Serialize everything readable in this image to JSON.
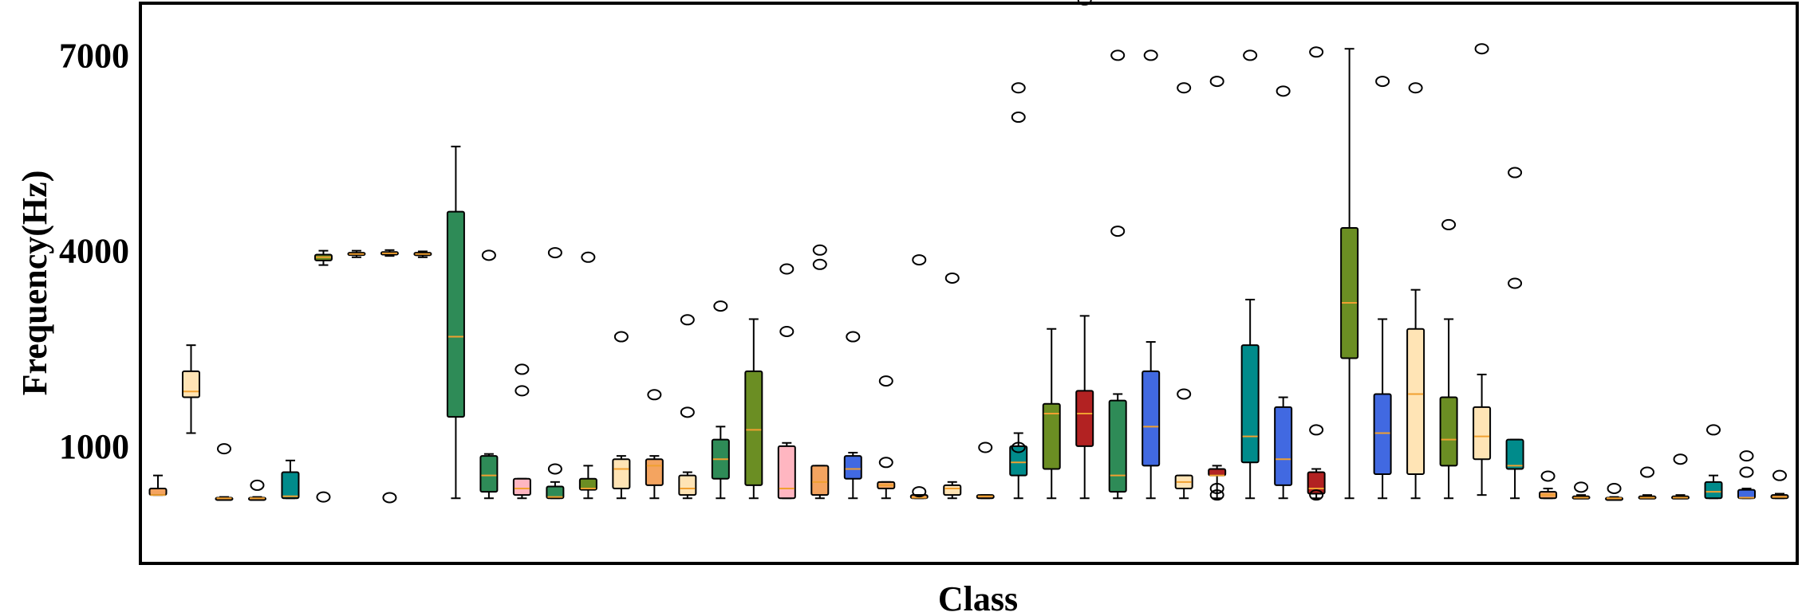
{
  "chart_data": {
    "type": "box",
    "title": "",
    "xlabel": "Class",
    "ylabel": "Frequency(Hz)",
    "ylim": [
      -800,
      7800
    ],
    "yticks": [
      1000,
      4000,
      7000
    ],
    "xtick_labels": [],
    "grid": false,
    "legend": "none",
    "median_color": "#f0a030",
    "boxes": [
      {
        "color": "#f4a460",
        "min": 250,
        "q1": 250,
        "median": 250,
        "q3": 350,
        "max": 550,
        "outliers": []
      },
      {
        "color": "#ffe4b5",
        "min": 1200,
        "q1": 1750,
        "median": 1840,
        "q3": 2150,
        "max": 2550,
        "outliers": []
      },
      {
        "color": "#f4a460",
        "min": 200,
        "q1": 200,
        "median": 200,
        "q3": 210,
        "max": 220,
        "outliers": [
          960
        ]
      },
      {
        "color": "#f4a460",
        "min": 200,
        "q1": 200,
        "median": 200,
        "q3": 210,
        "max": 220,
        "outliers": [
          400
        ]
      },
      {
        "color": "#008b8b",
        "min": 200,
        "q1": 200,
        "median": 230,
        "q3": 600,
        "max": 780,
        "outliers": []
      },
      {
        "color": "#6b8e23",
        "min": 3780,
        "q1": 3850,
        "median": 3900,
        "q3": 3940,
        "max": 4000,
        "outliers": [
          220
        ]
      },
      {
        "color": "#ffe4b5",
        "min": 3900,
        "q1": 3940,
        "median": 3950,
        "q3": 3970,
        "max": 4000,
        "outliers": []
      },
      {
        "color": "#ffe4b5",
        "min": 3920,
        "q1": 3940,
        "median": 3960,
        "q3": 3980,
        "max": 4010,
        "outliers": [
          210
        ]
      },
      {
        "color": "#ffe4b5",
        "min": 3900,
        "q1": 3930,
        "median": 3950,
        "q3": 3970,
        "max": 3990,
        "outliers": []
      },
      {
        "color": "#2e8b57",
        "min": 200,
        "q1": 1450,
        "median": 2680,
        "q3": 4600,
        "max": 5600,
        "outliers": []
      },
      {
        "color": "#2e8b57",
        "min": 200,
        "q1": 300,
        "median": 550,
        "q3": 850,
        "max": 880,
        "outliers": [
          3930
        ]
      },
      {
        "color": "#ffb6c1",
        "min": 200,
        "q1": 250,
        "median": 350,
        "q3": 500,
        "max": 500,
        "outliers": [
          1850,
          2180
        ]
      },
      {
        "color": "#2e8b57",
        "min": 200,
        "q1": 200,
        "median": 220,
        "q3": 380,
        "max": 450,
        "outliers": [
          650,
          3970
        ]
      },
      {
        "color": "#6b8e23",
        "min": 200,
        "q1": 330,
        "median": 350,
        "q3": 500,
        "max": 700,
        "outliers": [
          3900
        ]
      },
      {
        "color": "#ffe4b5",
        "min": 200,
        "q1": 350,
        "median": 650,
        "q3": 800,
        "max": 850,
        "outliers": [
          2680
        ]
      },
      {
        "color": "#f4a460",
        "min": 200,
        "q1": 400,
        "median": 700,
        "q3": 800,
        "max": 850,
        "outliers": [
          1790
        ]
      },
      {
        "color": "#ffe4b5",
        "min": 200,
        "q1": 250,
        "median": 350,
        "q3": 550,
        "max": 600,
        "outliers": [
          1520,
          2940
        ]
      },
      {
        "color": "#2e8b57",
        "min": 200,
        "q1": 500,
        "median": 800,
        "q3": 1100,
        "max": 1300,
        "outliers": [
          3150
        ]
      },
      {
        "color": "#6b8e23",
        "min": 200,
        "q1": 400,
        "median": 1250,
        "q3": 2150,
        "max": 2950,
        "outliers": []
      },
      {
        "color": "#ffb6c1",
        "min": 200,
        "q1": 200,
        "median": 350,
        "q3": 1000,
        "max": 1050,
        "outliers": [
          2760,
          3720
        ]
      },
      {
        "color": "#f4a460",
        "min": 200,
        "q1": 250,
        "median": 450,
        "q3": 700,
        "max": 700,
        "outliers": [
          3790,
          4010
        ]
      },
      {
        "color": "#4169e1",
        "min": 200,
        "q1": 500,
        "median": 650,
        "q3": 850,
        "max": 900,
        "outliers": [
          2680
        ]
      },
      {
        "color": "#f4a460",
        "min": 200,
        "q1": 350,
        "median": 400,
        "q3": 450,
        "max": 450,
        "outliers": [
          750,
          2000
        ]
      },
      {
        "color": "#f4a460",
        "min": 200,
        "q1": 200,
        "median": 210,
        "q3": 250,
        "max": 250,
        "outliers": [
          300,
          3860
        ]
      },
      {
        "color": "#ffe4b5",
        "min": 200,
        "q1": 250,
        "median": 350,
        "q3": 400,
        "max": 450,
        "outliers": [
          3580
        ]
      },
      {
        "color": "#f4a460",
        "min": 200,
        "q1": 200,
        "median": 230,
        "q3": 250,
        "max": 250,
        "outliers": [
          980
        ]
      },
      {
        "color": "#008b8b",
        "min": 200,
        "q1": 550,
        "median": 750,
        "q3": 1000,
        "max": 1200,
        "outliers": [
          980,
          6500,
          6050
        ]
      },
      {
        "color": "#6b8e23",
        "min": 200,
        "q1": 650,
        "median": 1500,
        "q3": 1650,
        "max": 2800,
        "outliers": []
      },
      {
        "color": "#b22222",
        "min": 200,
        "q1": 1000,
        "median": 1500,
        "q3": 1850,
        "max": 3000,
        "outliers": [
          7850
        ]
      },
      {
        "color": "#2e8b57",
        "min": 200,
        "q1": 300,
        "median": 550,
        "q3": 1700,
        "max": 1800,
        "outliers": [
          4300,
          7000
        ]
      },
      {
        "color": "#4169e1",
        "min": 200,
        "q1": 700,
        "median": 1300,
        "q3": 2150,
        "max": 2600,
        "outliers": [
          7000
        ]
      },
      {
        "color": "#ffe4b5",
        "min": 200,
        "q1": 350,
        "median": 450,
        "q3": 550,
        "max": 550,
        "outliers": [
          1800,
          6500
        ]
      },
      {
        "color": "#b22222",
        "min": 200,
        "q1": 550,
        "median": 550,
        "q3": 650,
        "max": 700,
        "outliers": [
          350,
          250,
          6600
        ]
      },
      {
        "color": "#008b8b",
        "min": 200,
        "q1": 750,
        "median": 1150,
        "q3": 2550,
        "max": 3250,
        "outliers": [
          7000
        ]
      },
      {
        "color": "#4169e1",
        "min": 200,
        "q1": 400,
        "median": 800,
        "q3": 1600,
        "max": 1750,
        "outliers": [
          6450
        ]
      },
      {
        "color": "#b22222",
        "min": 200,
        "q1": 270,
        "median": 350,
        "q3": 600,
        "max": 650,
        "outliers": [
          250,
          1250,
          7050
        ]
      },
      {
        "color": "#6b8e23",
        "min": 200,
        "q1": 2350,
        "median": 3200,
        "q3": 4350,
        "max": 7100,
        "outliers": []
      },
      {
        "color": "#4169e1",
        "min": 200,
        "q1": 570,
        "median": 1200,
        "q3": 1800,
        "max": 2950,
        "outliers": [
          6600
        ]
      },
      {
        "color": "#ffe4b5",
        "min": 200,
        "q1": 570,
        "median": 1800,
        "q3": 2800,
        "max": 3400,
        "outliers": [
          6500
        ]
      },
      {
        "color": "#6b8e23",
        "min": 200,
        "q1": 700,
        "median": 1100,
        "q3": 1750,
        "max": 2950,
        "outliers": [
          4400
        ]
      },
      {
        "color": "#ffe4b5",
        "min": 250,
        "q1": 800,
        "median": 1150,
        "q3": 1600,
        "max": 2100,
        "outliers": [
          7100
        ]
      },
      {
        "color": "#008b8b",
        "min": 200,
        "q1": 650,
        "median": 700,
        "q3": 1100,
        "max": 1100,
        "outliers": [
          3500,
          5200
        ]
      },
      {
        "color": "#f4a460",
        "min": 200,
        "q1": 200,
        "median": 250,
        "q3": 300,
        "max": 350,
        "outliers": [
          540
        ]
      },
      {
        "color": "#f4a460",
        "min": 200,
        "q1": 200,
        "median": 210,
        "q3": 230,
        "max": 250,
        "outliers": [
          370
        ]
      },
      {
        "color": "#f4a460",
        "min": 200,
        "q1": 200,
        "median": 200,
        "q3": 210,
        "max": 220,
        "outliers": [
          350
        ]
      },
      {
        "color": "#f4a460",
        "min": 200,
        "q1": 200,
        "median": 210,
        "q3": 230,
        "max": 250,
        "outliers": [
          600
        ]
      },
      {
        "color": "#f4a460",
        "min": 200,
        "q1": 200,
        "median": 210,
        "q3": 230,
        "max": 250,
        "outliers": [
          800
        ]
      },
      {
        "color": "#008b8b",
        "min": 200,
        "q1": 200,
        "median": 300,
        "q3": 450,
        "max": 550,
        "outliers": [
          1250
        ]
      },
      {
        "color": "#4169e1",
        "min": 200,
        "q1": 200,
        "median": 210,
        "q3": 330,
        "max": 350,
        "outliers": [
          600,
          850
        ]
      },
      {
        "color": "#f4a460",
        "min": 200,
        "q1": 200,
        "median": 220,
        "q3": 250,
        "max": 270,
        "outliers": [
          550
        ]
      }
    ]
  }
}
